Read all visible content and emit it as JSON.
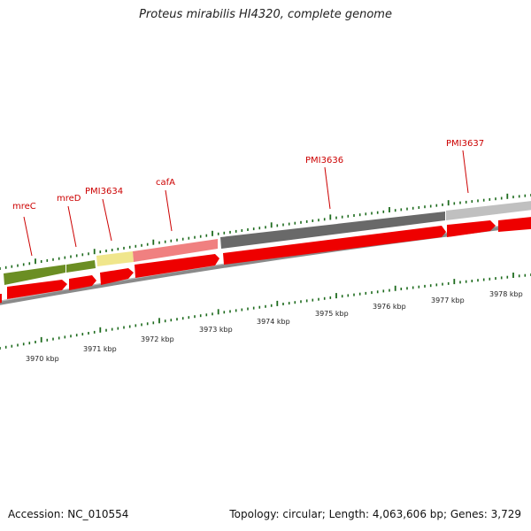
{
  "title": "Proteus mirabilis HI4320, complete genome",
  "footer": {
    "accession": "Accession: NC_010554",
    "summary": "Topology: circular; Length: 4,063,606 bp; Genes: 3,729"
  },
  "gene_labels": [
    "mreC",
    "mreD",
    "PMI3634",
    "cafA",
    "PMI3636",
    "PMI3637"
  ],
  "scale_labels": [
    "3970 kbp",
    "3971 kbp",
    "3972 kbp",
    "3973 kbp",
    "3974 kbp",
    "3975 kbp",
    "3976 kbp",
    "3977 kbp",
    "3978 kbp"
  ],
  "colors": {
    "cds": "#ee0000",
    "label": "#cc0000",
    "tick": "#1d6b1d",
    "backbone": "#8a8a8a",
    "gene_mreC": "#6b8e23",
    "gene_mreD": "#6b8e23",
    "gene_PMI3634": "#f0e68c",
    "gene_cafA": "#f08080",
    "gene_PMI3636": "#696969",
    "gene_PMI3637": "#c0c0c0"
  }
}
